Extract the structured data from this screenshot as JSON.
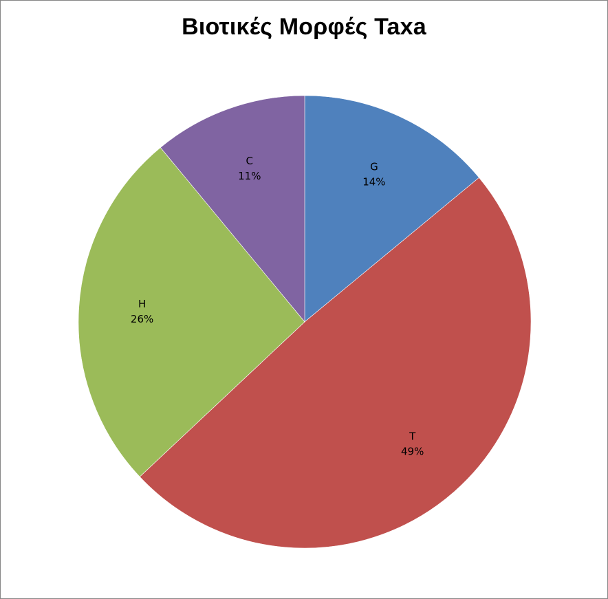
{
  "chart_data": {
    "type": "pie",
    "title": "Βιοτικές Μορφές Taxa",
    "start_angle_deg": 0,
    "direction": "clockwise",
    "slices": [
      {
        "label": "G",
        "percent_label": "14%",
        "value": 14,
        "color": "#4F81BD"
      },
      {
        "label": "T",
        "percent_label": "49%",
        "value": 49,
        "color": "#C0504D"
      },
      {
        "label": "H",
        "percent_label": "26%",
        "value": 26,
        "color": "#9BBB59"
      },
      {
        "label": "C",
        "percent_label": "11%",
        "value": 11,
        "color": "#8064A2"
      }
    ],
    "legend": "none"
  }
}
